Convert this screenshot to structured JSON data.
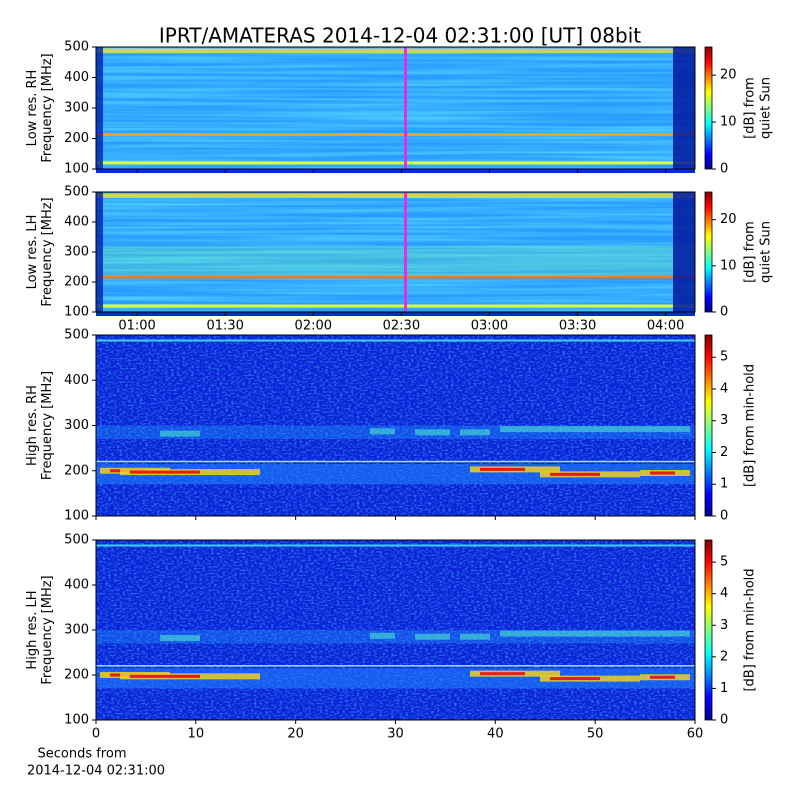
{
  "chart_data": [
    {
      "type": "heatmap",
      "title": "IPRT/AMATERAS 2014-12-04 02:31:00 [UT]   08bit",
      "ylabel": [
        "Low res. RH",
        "Frequency [MHz]"
      ],
      "ylim": [
        100,
        500
      ],
      "yticks": [
        100,
        200,
        300,
        400,
        500
      ],
      "xlim": [
        46,
        250
      ],
      "xticks": [
        60,
        90,
        120,
        150,
        180,
        210,
        240
      ],
      "colorbar": {
        "label": [
          "[dB] from",
          "quiet Sun"
        ],
        "lim": [
          0,
          26
        ],
        "ticks": [
          0,
          10,
          20
        ]
      }
    },
    {
      "type": "heatmap",
      "ylabel": [
        "Low res. LH",
        "Frequency [MHz]"
      ],
      "ylim": [
        100,
        500
      ],
      "yticks": [
        100,
        200,
        300,
        400,
        500
      ],
      "xlim": [
        46,
        250
      ],
      "xticks": [
        {
          "value": 60,
          "label": "01:00"
        },
        {
          "value": 90,
          "label": "01:30"
        },
        {
          "value": 120,
          "label": "02:00"
        },
        {
          "value": 150,
          "label": "02:30"
        },
        {
          "value": 180,
          "label": "03:00"
        },
        {
          "value": 210,
          "label": "03:30"
        },
        {
          "value": 240,
          "label": "04:00"
        }
      ],
      "colorbar": {
        "label": [
          "[dB] from",
          "quiet Sun"
        ],
        "lim": [
          0,
          26
        ],
        "ticks": [
          0,
          10,
          20
        ]
      }
    },
    {
      "type": "heatmap",
      "ylabel": [
        "High res. RH",
        "Frequency [MHz]"
      ],
      "ylim": [
        100,
        500
      ],
      "yticks": [
        100,
        200,
        300,
        400,
        500
      ],
      "xlim": [
        0,
        60
      ],
      "xticks": [
        0,
        10,
        20,
        30,
        40,
        50,
        60
      ],
      "colorbar": {
        "label": [
          "[dB] from min-hold"
        ],
        "lim": [
          0,
          5.7
        ],
        "ticks": [
          0,
          1,
          2,
          3,
          4,
          5
        ]
      }
    },
    {
      "type": "heatmap",
      "ylabel": [
        "High res. LH",
        "Frequency [MHz]"
      ],
      "ylim": [
        100,
        500
      ],
      "yticks": [
        100,
        200,
        300,
        400,
        500
      ],
      "xlim": [
        0,
        60
      ],
      "xticks": [
        0,
        10,
        20,
        30,
        40,
        50,
        60
      ],
      "xlabel": [
        "Seconds from",
        "2014-12-04 02:31:00"
      ],
      "colorbar": {
        "label": [
          "[dB] from min-hold"
        ],
        "lim": [
          0,
          5.7
        ],
        "ticks": [
          0,
          1,
          2,
          3,
          4,
          5
        ]
      }
    }
  ]
}
